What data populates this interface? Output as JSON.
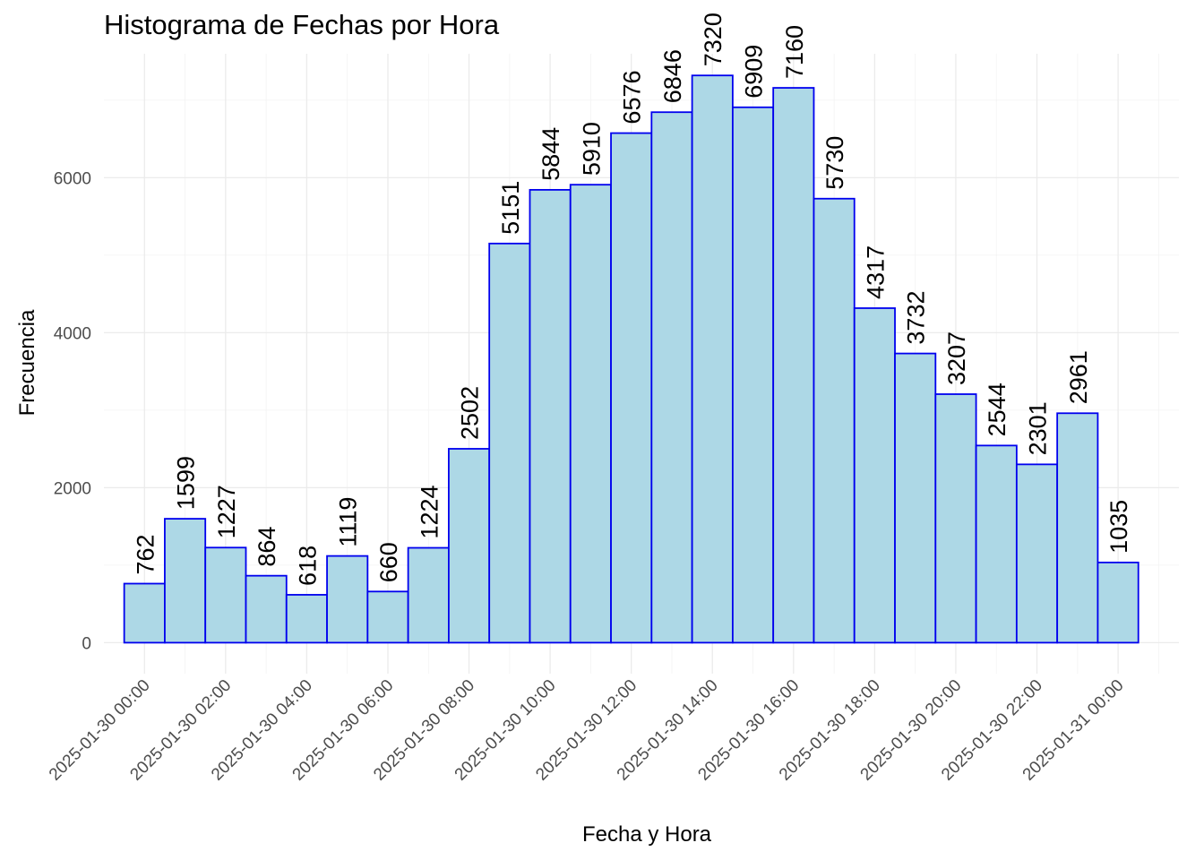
{
  "chart_data": {
    "type": "bar",
    "title": "Histograma de Fechas por Hora",
    "xlabel": "Fecha y Hora",
    "ylabel": "Frecuencia",
    "ylim": [
      -400,
      7600
    ],
    "y_ticks": [
      0,
      2000,
      4000,
      6000
    ],
    "y_tick_labels": [
      "0",
      "2000",
      "4000",
      "6000"
    ],
    "x_domain_hours": [
      -1,
      25.5
    ],
    "x_tick_hours": [
      0,
      2,
      4,
      6,
      8,
      10,
      12,
      14,
      16,
      18,
      20,
      22,
      24
    ],
    "x_tick_labels": [
      "2025-01-30 00:00",
      "2025-01-30 02:00",
      "2025-01-30 04:00",
      "2025-01-30 06:00",
      "2025-01-30 08:00",
      "2025-01-30 10:00",
      "2025-01-30 12:00",
      "2025-01-30 14:00",
      "2025-01-30 16:00",
      "2025-01-30 18:00",
      "2025-01-30 20:00",
      "2025-01-30 22:00",
      "2025-01-31 00:00"
    ],
    "bins_start_hour": -0.5,
    "bin_width_hours": 1,
    "values": [
      762,
      1599,
      1227,
      864,
      618,
      1119,
      660,
      1224,
      2502,
      5151,
      5844,
      5910,
      6576,
      6846,
      7320,
      6909,
      7160,
      5730,
      4317,
      3732,
      3207,
      2544,
      2301,
      2961,
      1035
    ],
    "value_labels": [
      "762",
      "1599",
      "1227",
      "864",
      "618",
      "1119",
      "660",
      "1224",
      "2502",
      "5151",
      "5844",
      "5910",
      "6576",
      "6846",
      "7320",
      "6909",
      "7160",
      "5730",
      "4317",
      "3732",
      "3207",
      "2544",
      "2301",
      "2961",
      "1035"
    ],
    "grid": true,
    "bar_fill": "#add8e6",
    "bar_stroke": "#0000ee"
  }
}
